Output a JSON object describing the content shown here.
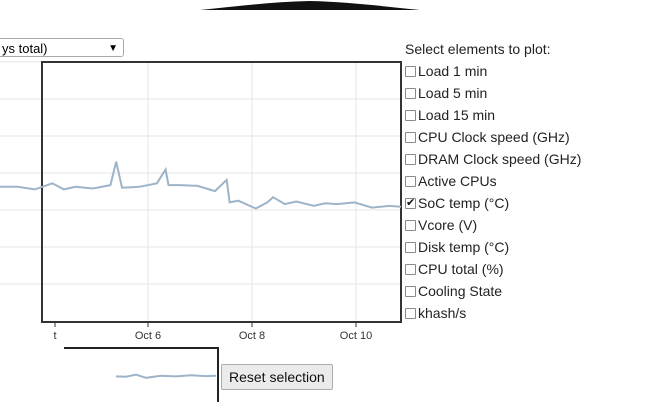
{
  "range_select": {
    "value": "ys total)",
    "arrow": "▼"
  },
  "options_panel": {
    "title": "Select elements to plot:",
    "items": [
      {
        "label": "Load 1 min",
        "checked": false
      },
      {
        "label": "Load 5 min",
        "checked": false
      },
      {
        "label": "Load 15 min",
        "checked": false
      },
      {
        "label": "CPU Clock speed (GHz)",
        "checked": false
      },
      {
        "label": "DRAM Clock speed (GHz)",
        "checked": false
      },
      {
        "label": "Active CPUs",
        "checked": false
      },
      {
        "label": "SoC temp (°C)",
        "checked": true
      },
      {
        "label": "Vcore (V)",
        "checked": false
      },
      {
        "label": "Disk temp (°C)",
        "checked": false
      },
      {
        "label": "CPU total (%)",
        "checked": false
      },
      {
        "label": "Cooling State",
        "checked": false
      },
      {
        "label": "khash/s",
        "checked": false
      }
    ]
  },
  "reset_button": {
    "label": "Reset selection"
  },
  "colors": {
    "series": "#9db4c8",
    "grid": "#e4e4e4",
    "axis": "#333333"
  },
  "chart_data": {
    "type": "line",
    "x_ticks": [
      "t",
      "Oct 6",
      "Oct 8",
      "Oct 10"
    ],
    "series": [
      {
        "points": [
          [
            3.9,
            50.6
          ],
          [
            4.2,
            50.6
          ],
          [
            4.5,
            50.3
          ],
          [
            4.8,
            51.0
          ],
          [
            5.0,
            50.3
          ],
          [
            5.2,
            50.6
          ],
          [
            5.5,
            50.4
          ],
          [
            5.8,
            50.8
          ],
          [
            5.9,
            53.5
          ],
          [
            6.0,
            50.5
          ],
          [
            6.3,
            50.6
          ],
          [
            6.6,
            51.0
          ],
          [
            6.75,
            52.6
          ],
          [
            6.8,
            50.8
          ],
          [
            7.0,
            50.8
          ],
          [
            7.3,
            50.7
          ],
          [
            7.6,
            50.1
          ],
          [
            7.8,
            51.4
          ],
          [
            7.85,
            48.8
          ],
          [
            8.0,
            49.0
          ],
          [
            8.3,
            48.1
          ],
          [
            8.5,
            48.8
          ],
          [
            8.6,
            49.4
          ],
          [
            8.8,
            48.6
          ],
          [
            9.0,
            48.9
          ],
          [
            9.3,
            48.4
          ],
          [
            9.5,
            48.7
          ],
          [
            9.7,
            48.6
          ],
          [
            10.0,
            48.8
          ],
          [
            10.3,
            48.2
          ],
          [
            10.6,
            48.4
          ],
          [
            10.8,
            48.3
          ]
        ]
      }
    ],
    "overview": {
      "points": [
        [
          0,
          0.4
        ],
        [
          0.1,
          0.38
        ],
        [
          0.2,
          0.52
        ],
        [
          0.3,
          0.3
        ],
        [
          0.45,
          0.45
        ],
        [
          0.6,
          0.4
        ],
        [
          0.75,
          0.48
        ],
        [
          0.9,
          0.42
        ],
        [
          1.0,
          0.44
        ]
      ]
    },
    "grid": true
  }
}
